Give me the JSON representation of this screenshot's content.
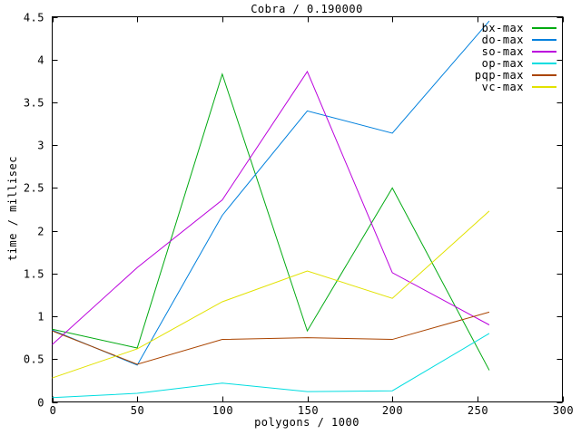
{
  "chart_data": {
    "type": "line",
    "title": "Cobra / 0.190000",
    "xlabel": "polygons / 1000",
    "ylabel": "time / millisec",
    "xlim": [
      0,
      300
    ],
    "ylim": [
      0,
      4.5
    ],
    "x_tick_values": [
      0,
      50,
      100,
      150,
      200,
      250,
      300
    ],
    "x_tick_labels": [
      "0",
      "50",
      "100",
      "150",
      "200",
      "250",
      "300"
    ],
    "y_tick_values": [
      0,
      0.5,
      1,
      1.5,
      2,
      2.5,
      3,
      3.5,
      4,
      4.5
    ],
    "y_tick_labels": [
      "0",
      "0.5",
      "1",
      "1.5",
      "2",
      "2.5",
      "3",
      "3.5",
      "4",
      "4.5"
    ],
    "grid": false,
    "legend_position": "top-right-inside",
    "background_color": "#ffffff",
    "axis_color": "#000000",
    "x": [
      0,
      50,
      100,
      150,
      200,
      257
    ],
    "series": [
      {
        "name": "bx-max",
        "color": "#00aa11",
        "values": [
          0.85,
          0.63,
          3.83,
          0.83,
          2.5,
          0.37
        ]
      },
      {
        "name": "do-max",
        "color": "#0080dd",
        "values": [
          0.84,
          0.43,
          2.18,
          3.4,
          3.14,
          4.45
        ]
      },
      {
        "name": "so-max",
        "color": "#bb00dd",
        "values": [
          0.67,
          1.57,
          2.36,
          3.86,
          1.51,
          0.9
        ]
      },
      {
        "name": "op-max",
        "color": "#00dde0",
        "values": [
          0.05,
          0.1,
          0.22,
          0.12,
          0.13,
          0.8
        ]
      },
      {
        "name": "pqp-max",
        "color": "#aa4400",
        "values": [
          0.83,
          0.44,
          0.73,
          0.75,
          0.73,
          1.05
        ]
      },
      {
        "name": "vc-max",
        "color": "#e2e200",
        "values": [
          0.28,
          0.62,
          1.17,
          1.53,
          1.21,
          2.23
        ]
      }
    ]
  }
}
